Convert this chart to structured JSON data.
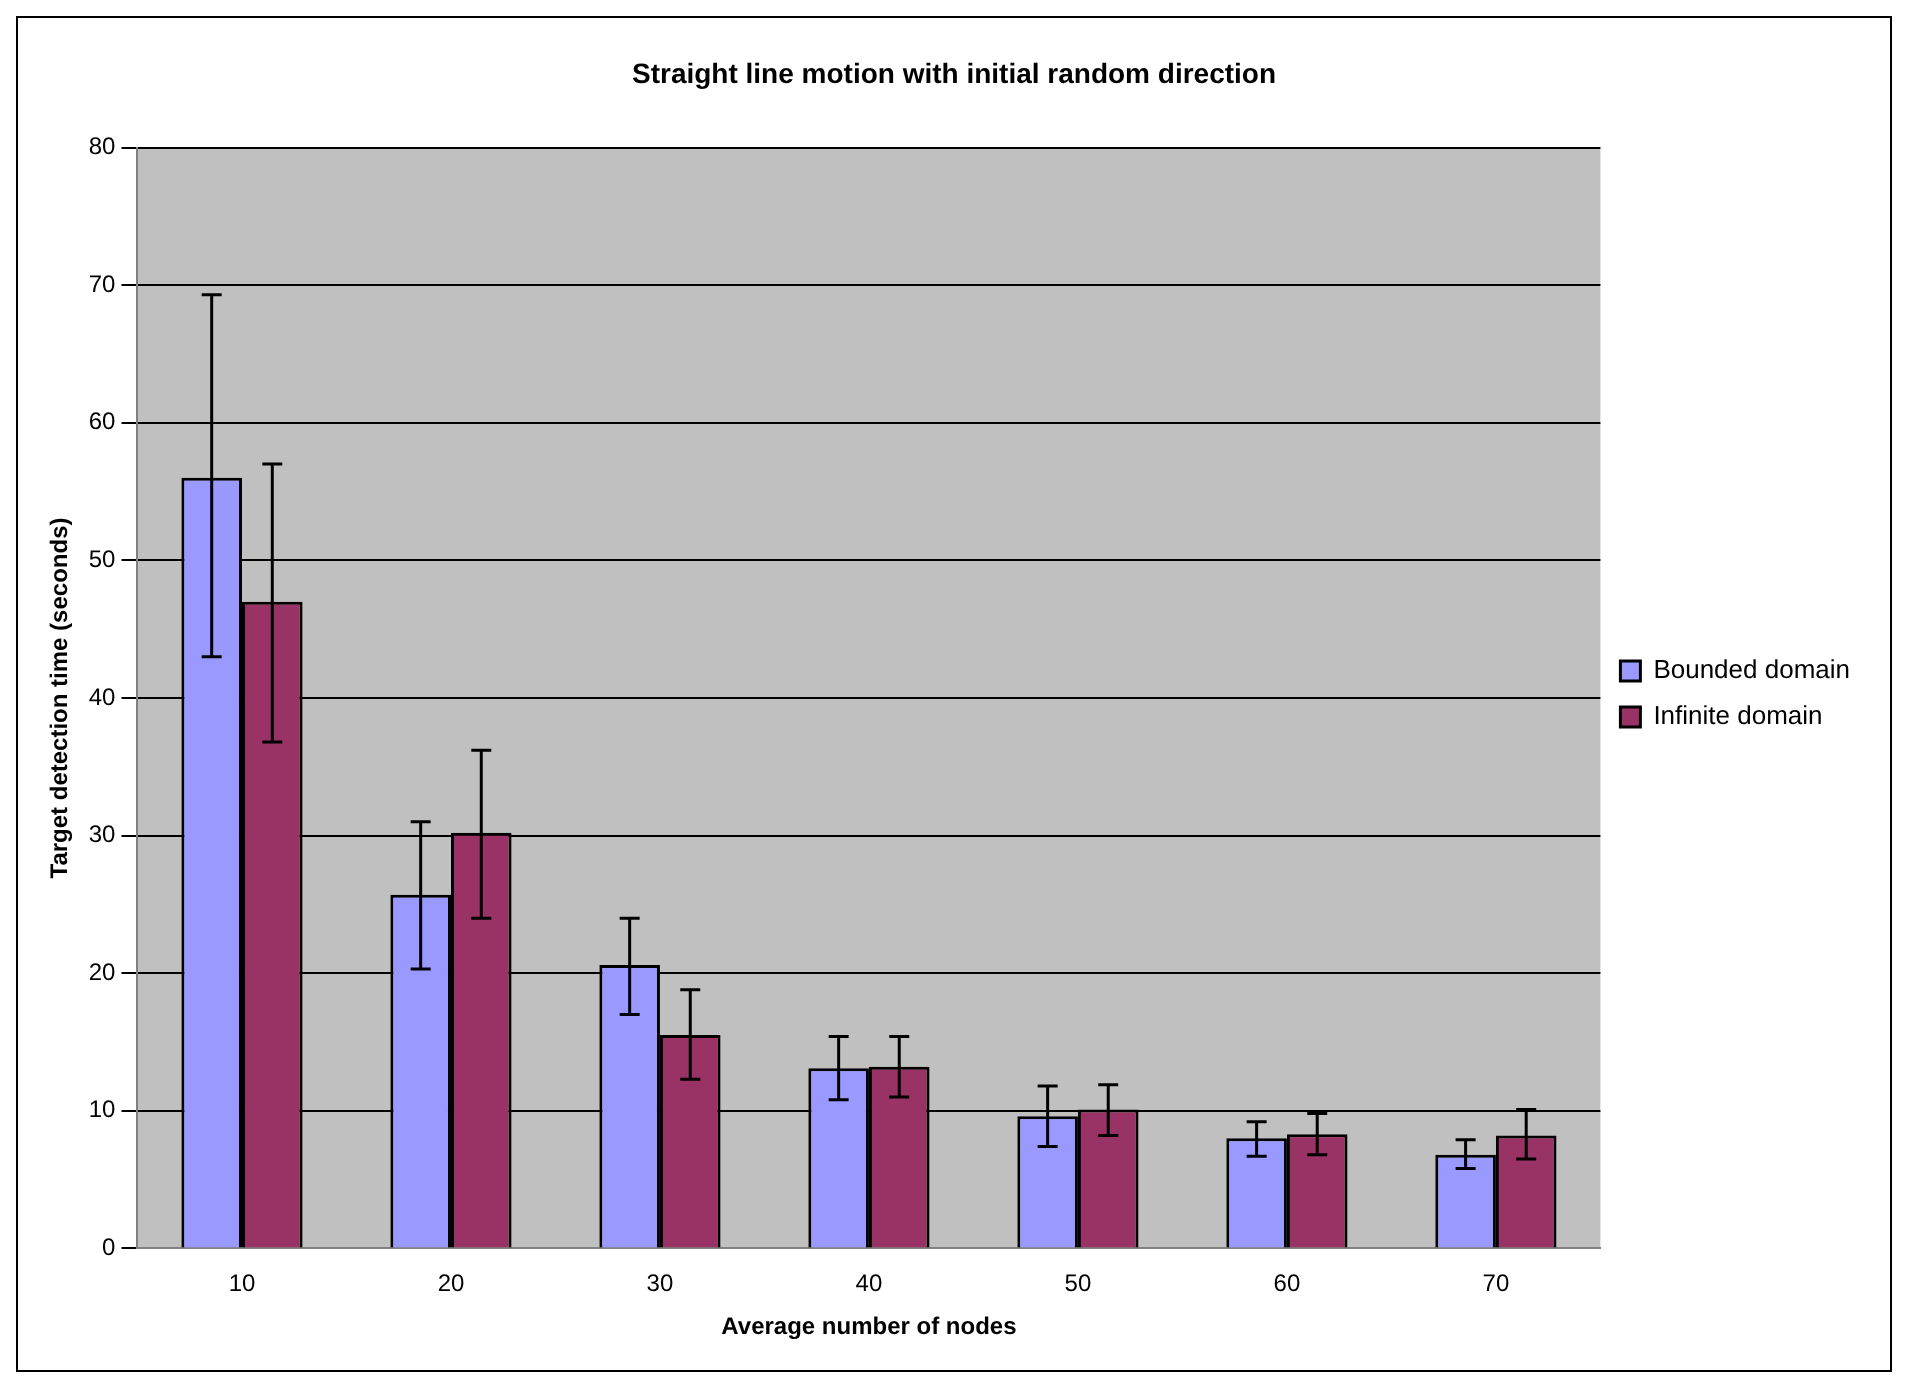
{
  "chart_data": {
    "type": "bar",
    "title": "Straight line motion with initial random direction",
    "xlabel": "Average number of nodes",
    "ylabel": "Target detection time (seconds)",
    "categories": [
      "10",
      "20",
      "30",
      "40",
      "50",
      "60",
      "70"
    ],
    "series": [
      {
        "name": "Bounded domain",
        "color": "#9999ff",
        "values": [
          56,
          25.7,
          20.6,
          13.1,
          9.6,
          8,
          6.8
        ],
        "errors": [
          [
            43,
            69.3
          ],
          [
            20.3,
            31
          ],
          [
            17,
            24
          ],
          [
            10.8,
            15.4
          ],
          [
            7.4,
            11.8
          ],
          [
            6.7,
            9.2
          ],
          [
            5.8,
            7.9
          ]
        ]
      },
      {
        "name": "Infinite domain",
        "color": "#993366",
        "values": [
          47,
          30.2,
          15.5,
          13.2,
          10.1,
          8.3,
          8.2
        ],
        "errors": [
          [
            36.8,
            57
          ],
          [
            24,
            36.2
          ],
          [
            12.3,
            18.8
          ],
          [
            11,
            15.4
          ],
          [
            8.2,
            11.9
          ],
          [
            6.8,
            9.8
          ],
          [
            6.5,
            10.1
          ]
        ]
      }
    ],
    "ylim": [
      0,
      80
    ],
    "yticks": [
      0,
      10,
      20,
      30,
      40,
      50,
      60,
      70,
      80
    ],
    "grid": "y",
    "legend": "right"
  }
}
